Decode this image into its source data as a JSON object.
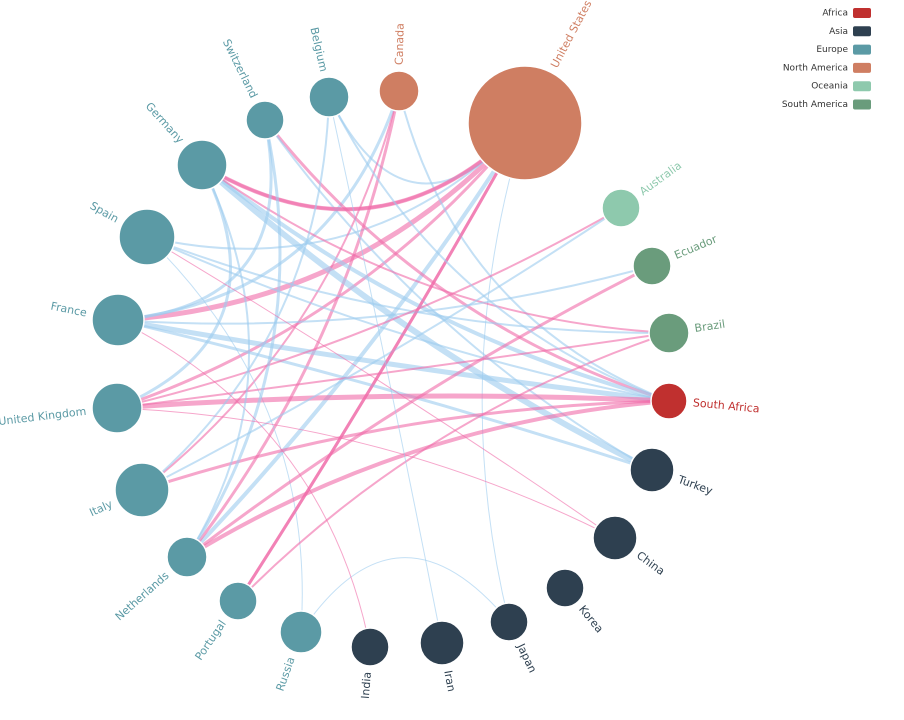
{
  "legend": [
    {
      "label": "Africa",
      "color": "#c0302f"
    },
    {
      "label": "Asia",
      "color": "#2e4050"
    },
    {
      "label": "Europe",
      "color": "#5b9aa5"
    },
    {
      "label": "North America",
      "color": "#cf7e62"
    },
    {
      "label": "Oceania",
      "color": "#8ec9ad"
    },
    {
      "label": "South America",
      "color": "#6a9c7c"
    }
  ],
  "nodes": [
    {
      "label": "United States",
      "group": "North America"
    },
    {
      "label": "Canada",
      "group": "North America"
    },
    {
      "label": "Belgium",
      "group": "Europe"
    },
    {
      "label": "Switzerland",
      "group": "Europe"
    },
    {
      "label": "Germany",
      "group": "Europe"
    },
    {
      "label": "Spain",
      "group": "Europe"
    },
    {
      "label": "France",
      "group": "Europe"
    },
    {
      "label": "United Kingdom",
      "group": "Europe"
    },
    {
      "label": "Italy",
      "group": "Europe"
    },
    {
      "label": "Netherlands",
      "group": "Europe"
    },
    {
      "label": "Portugal",
      "group": "Europe"
    },
    {
      "label": "Russia",
      "group": "Europe"
    },
    {
      "label": "India",
      "group": "Asia"
    },
    {
      "label": "Iran",
      "group": "Asia"
    },
    {
      "label": "Japan",
      "group": "Asia"
    },
    {
      "label": "Korea",
      "group": "Asia"
    },
    {
      "label": "China",
      "group": "Asia"
    },
    {
      "label": "Turkey",
      "group": "Asia"
    },
    {
      "label": "South Africa",
      "group": "Africa"
    },
    {
      "label": "Brazil",
      "group": "South America"
    },
    {
      "label": "Ecuador",
      "group": "South America"
    },
    {
      "label": "Australia",
      "group": "Oceania"
    }
  ]
}
